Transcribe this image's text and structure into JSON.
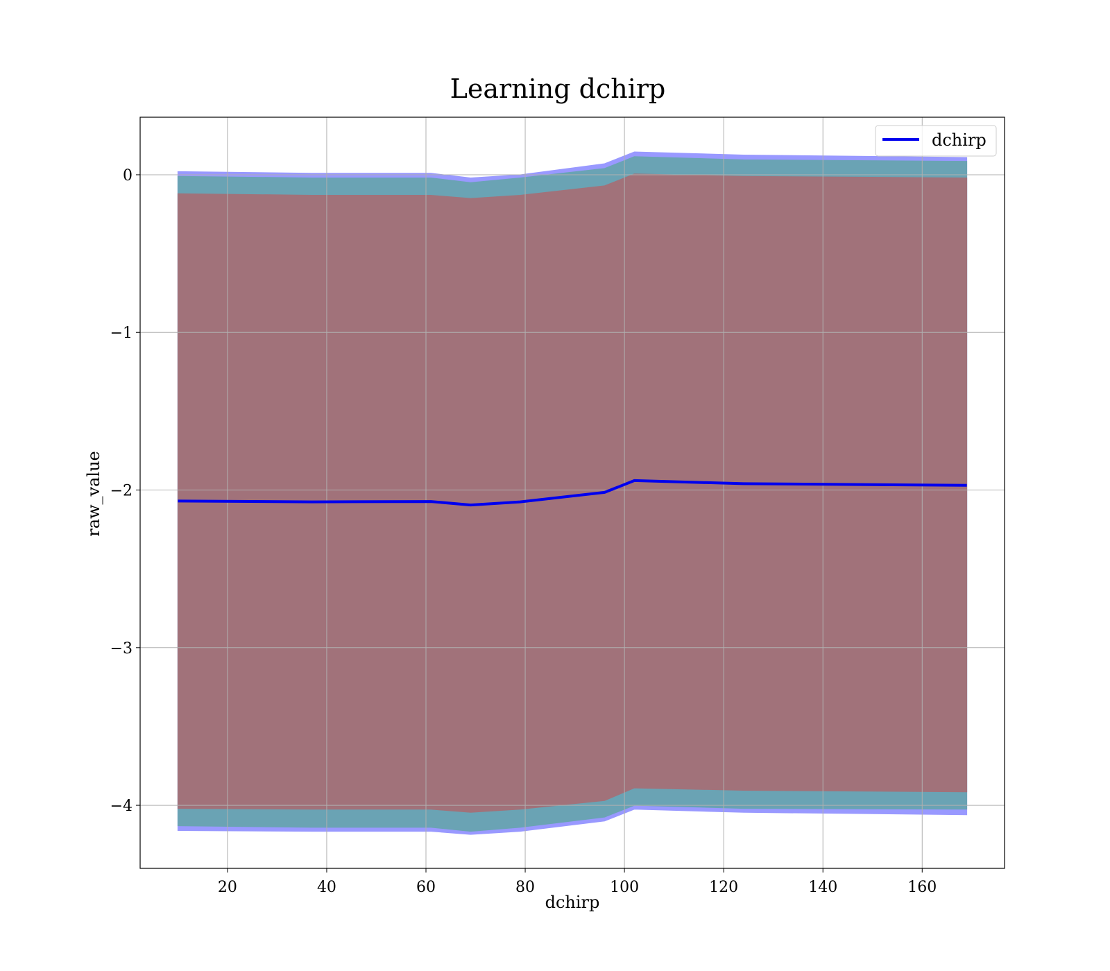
{
  "chart_data": {
    "type": "line",
    "title": "Learning dchirp",
    "xlabel": "dchirp",
    "ylabel": "raw_value",
    "xlim": [
      2.4,
      176.6
    ],
    "ylim": [
      -4.4,
      0.365
    ],
    "xticks": [
      20,
      40,
      60,
      80,
      100,
      120,
      140,
      160
    ],
    "yticks": [
      0,
      -1,
      -2,
      -3,
      -4
    ],
    "ytick_labels": [
      "0",
      "−1",
      "−2",
      "−3",
      "−4"
    ],
    "grid": true,
    "legend_position": "top-right",
    "x": [
      10,
      37,
      61,
      69,
      79,
      96,
      102,
      124,
      169
    ],
    "series": [
      {
        "name": "dchirp",
        "color": "#0000ee",
        "values": [
          -2.07,
          -2.075,
          -2.073,
          -2.095,
          -2.075,
          -2.015,
          -1.94,
          -1.96,
          -1.97
        ]
      }
    ],
    "bands": [
      {
        "color": "#9999ff",
        "upper": [
          0.02,
          0.01,
          0.01,
          -0.02,
          0.0,
          0.07,
          0.145,
          0.125,
          0.11
        ],
        "lower": [
          -4.16,
          -4.165,
          -4.165,
          -4.185,
          -4.165,
          -4.1,
          -4.025,
          -4.045,
          -4.06
        ]
      },
      {
        "color": "#6aa3b4",
        "upper": [
          -0.01,
          -0.02,
          -0.02,
          -0.05,
          -0.02,
          0.04,
          0.115,
          0.095,
          0.085
        ],
        "lower": [
          -4.13,
          -4.14,
          -4.14,
          -4.165,
          -4.14,
          -4.075,
          -4.0,
          -4.02,
          -4.025
        ]
      },
      {
        "color": "#a1727a",
        "upper": [
          -0.12,
          -0.13,
          -0.13,
          -0.15,
          -0.13,
          -0.07,
          0.005,
          -0.01,
          -0.02
        ],
        "lower": [
          -4.02,
          -4.025,
          -4.025,
          -4.045,
          -4.025,
          -3.97,
          -3.89,
          -3.905,
          -3.915
        ]
      }
    ]
  }
}
